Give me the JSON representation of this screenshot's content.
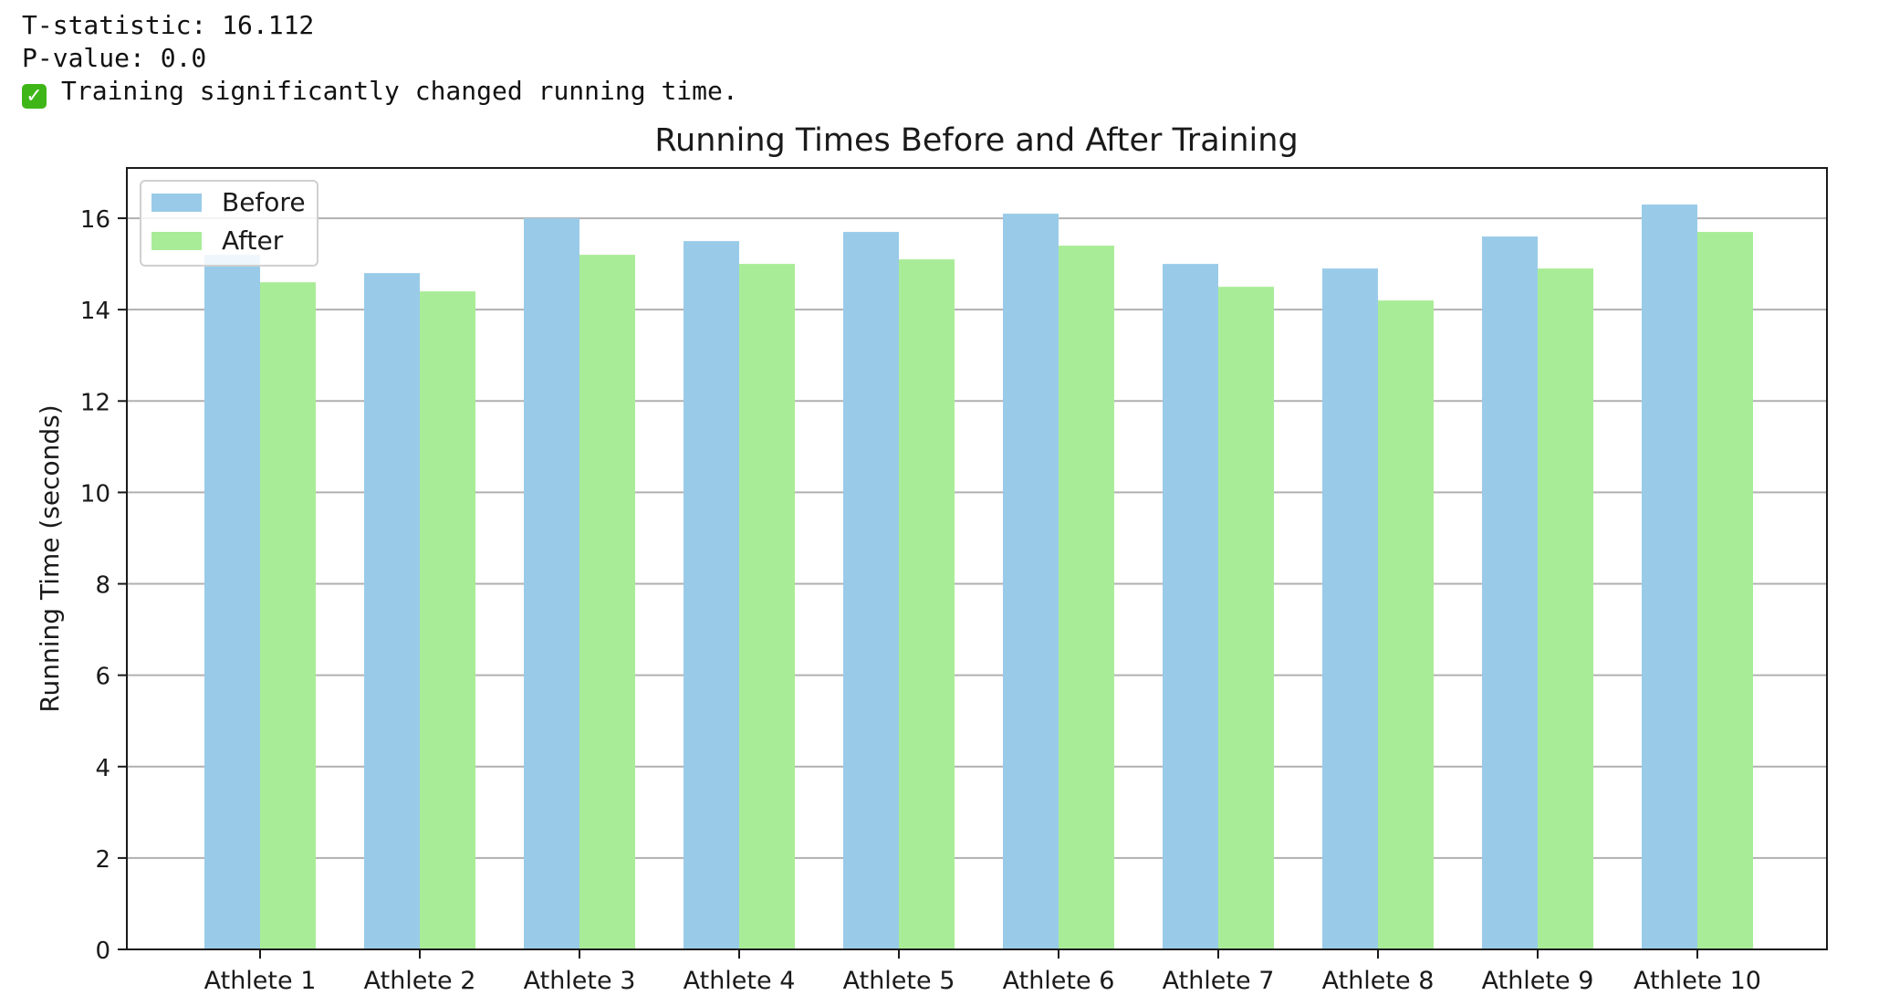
{
  "console": {
    "lines": [
      "T-statistic: 16.112",
      "P-value: 0.0",
      "Training significantly changed running time."
    ],
    "status_icon": "check-mark-icon",
    "status_color": "#3fb618"
  },
  "chart_data": {
    "type": "bar",
    "title": "Running Times Before and After Training",
    "xlabel": "",
    "ylabel": "Running Time (seconds)",
    "categories": [
      "Athlete 1",
      "Athlete 2",
      "Athlete 3",
      "Athlete 4",
      "Athlete 5",
      "Athlete 6",
      "Athlete 7",
      "Athlete 8",
      "Athlete 9",
      "Athlete 10"
    ],
    "series": [
      {
        "name": "Before",
        "color": "#99cbe8",
        "values": [
          15.2,
          14.8,
          16.0,
          15.5,
          15.7,
          16.1,
          15.0,
          14.9,
          15.6,
          16.3
        ]
      },
      {
        "name": "After",
        "color": "#a9ec97",
        "values": [
          14.6,
          14.4,
          15.2,
          15.0,
          15.1,
          15.4,
          14.5,
          14.2,
          14.9,
          15.7
        ]
      }
    ],
    "ylim": [
      0,
      17.1
    ],
    "yticks": [
      0,
      2,
      4,
      6,
      8,
      10,
      12,
      14,
      16
    ],
    "grid": "y",
    "legend": "top-left"
  }
}
